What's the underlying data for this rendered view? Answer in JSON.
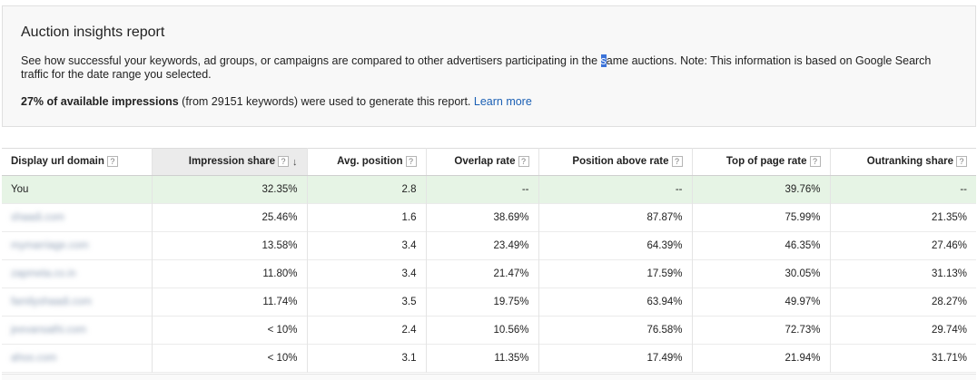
{
  "report": {
    "title": "Auction insights report",
    "desc_before": "See how successful your keywords, ad groups, or campaigns are compared to other advertisers participating in the ",
    "desc_selected": "s",
    "desc_after": "ame auctions. Note: This information is based on Google Search traffic for the date range you selected.",
    "stat_bold": "27% of available impressions",
    "stat_rest": " (from 29151 keywords) were used to generate this report. ",
    "learn_more": "Learn more"
  },
  "table": {
    "help_glyph": "?",
    "sort_glyph": "↓",
    "columns": [
      "Display url domain",
      "Impression share",
      "Avg. position",
      "Overlap rate",
      "Position above rate",
      "Top of page rate",
      "Outranking share"
    ],
    "sorted_column_index": 1,
    "rows": [
      {
        "domain": "You",
        "impression_share": "32.35%",
        "avg_position": "2.8",
        "overlap_rate": "--",
        "position_above_rate": "--",
        "top_of_page_rate": "39.76%",
        "outranking_share": "--"
      },
      {
        "domain": "shaadi.com",
        "impression_share": "25.46%",
        "avg_position": "1.6",
        "overlap_rate": "38.69%",
        "position_above_rate": "87.87%",
        "top_of_page_rate": "75.99%",
        "outranking_share": "21.35%"
      },
      {
        "domain": "mymarriage.com",
        "impression_share": "13.58%",
        "avg_position": "3.4",
        "overlap_rate": "23.49%",
        "position_above_rate": "64.39%",
        "top_of_page_rate": "46.35%",
        "outranking_share": "27.46%"
      },
      {
        "domain": "zapmeta.co.in",
        "impression_share": "11.80%",
        "avg_position": "3.4",
        "overlap_rate": "21.47%",
        "position_above_rate": "17.59%",
        "top_of_page_rate": "30.05%",
        "outranking_share": "31.13%"
      },
      {
        "domain": "familyshaadi.com",
        "impression_share": "11.74%",
        "avg_position": "3.5",
        "overlap_rate": "19.75%",
        "position_above_rate": "63.94%",
        "top_of_page_rate": "49.97%",
        "outranking_share": "28.27%"
      },
      {
        "domain": "jeevansathi.com",
        "impression_share": "< 10%",
        "avg_position": "2.4",
        "overlap_rate": "10.56%",
        "position_above_rate": "76.58%",
        "top_of_page_rate": "72.73%",
        "outranking_share": "29.74%"
      },
      {
        "domain": "ahoo.com",
        "impression_share": "< 10%",
        "avg_position": "3.1",
        "overlap_rate": "11.35%",
        "position_above_rate": "17.49%",
        "top_of_page_rate": "21.94%",
        "outranking_share": "31.71%"
      }
    ]
  },
  "colors": {
    "link": "#1a5fb4",
    "you_row_bg": "#e6f4e5",
    "sorted_header_bg": "#ebebeb",
    "selection": "#3b73d9"
  }
}
